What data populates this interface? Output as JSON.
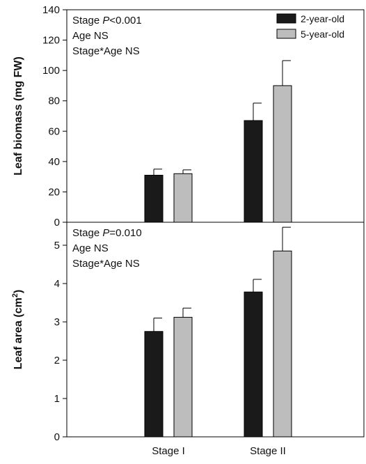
{
  "chart_data": {
    "type": "bar",
    "categories": [
      "Stage I",
      "Stage II"
    ],
    "legend": {
      "placement": "top-right",
      "entries": [
        {
          "name": "2-year-old",
          "color": "#1a1a1a"
        },
        {
          "name": "5-year-old",
          "color": "#bdbdbd"
        }
      ]
    },
    "panels": [
      {
        "ylabel_main": "Leaf biomass (mg FW)",
        "ylim": [
          0,
          140
        ],
        "yticks": [
          "0",
          "20",
          "40",
          "60",
          "80",
          "100",
          "120",
          "140"
        ],
        "annotations": [
          {
            "parts": [
              {
                "text": "Stage ",
                "italic": false
              },
              {
                "text": "P",
                "italic": true
              },
              {
                "text": "<0.001",
                "italic": false
              }
            ]
          },
          {
            "parts": [
              {
                "text": "Age NS",
                "italic": false
              }
            ]
          },
          {
            "parts": [
              {
                "text": "Stage*Age NS",
                "italic": false
              }
            ]
          }
        ],
        "series": [
          {
            "name": "2-year-old",
            "values": [
              31,
              67
            ],
            "errors": [
              4,
              11.5
            ]
          },
          {
            "name": "5-year-old",
            "values": [
              32,
              90
            ],
            "errors": [
              2.5,
              16.5
            ]
          }
        ]
      },
      {
        "ylabel_main": "Leaf area (cm",
        "ylabel_sup": "2",
        "ylabel_end": ")",
        "ylim": [
          0,
          5.6
        ],
        "yticks": [
          "0",
          "1",
          "2",
          "3",
          "4",
          "5"
        ],
        "annotations": [
          {
            "parts": [
              {
                "text": "Stage ",
                "italic": false
              },
              {
                "text": "P",
                "italic": true
              },
              {
                "text": "=0.010",
                "italic": false
              }
            ]
          },
          {
            "parts": [
              {
                "text": "Age NS",
                "italic": false
              }
            ]
          },
          {
            "parts": [
              {
                "text": "Stage*Age NS",
                "italic": false
              }
            ]
          }
        ],
        "series": [
          {
            "name": "2-year-old",
            "values": [
              2.75,
              3.78
            ],
            "errors": [
              0.35,
              0.33
            ]
          },
          {
            "name": "5-year-old",
            "values": [
              3.12,
              4.85
            ],
            "errors": [
              0.24,
              0.62
            ]
          }
        ]
      }
    ]
  }
}
